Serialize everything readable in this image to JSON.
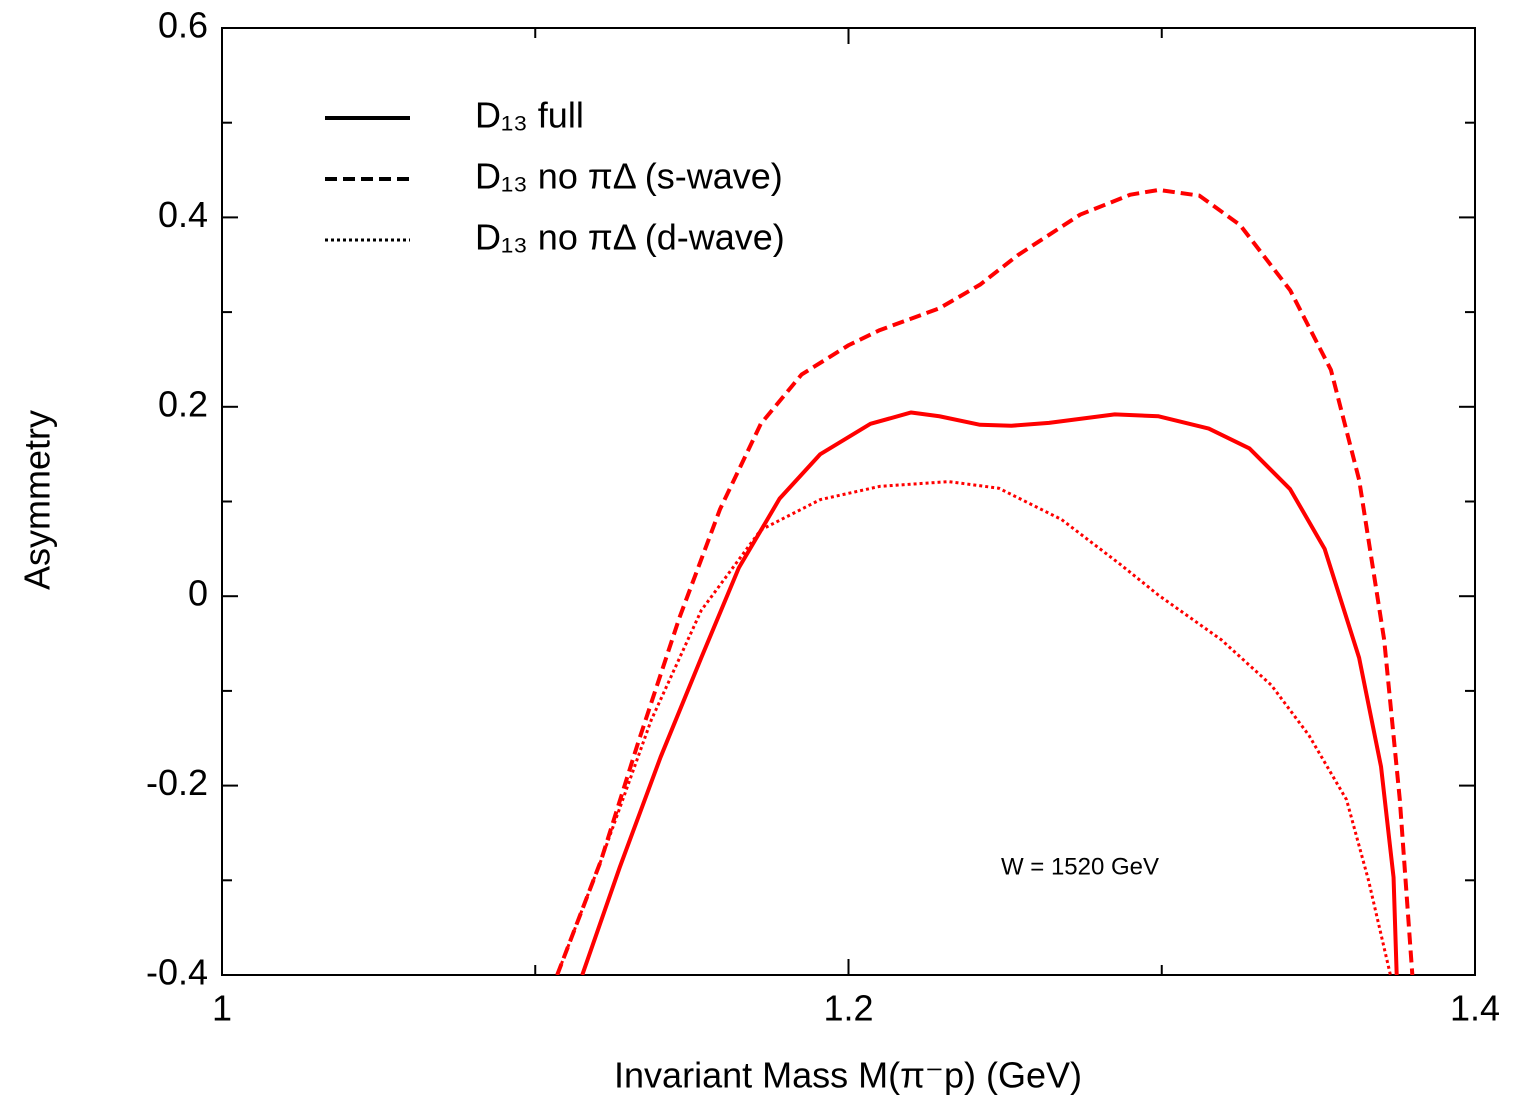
{
  "chart_data": {
    "type": "line",
    "xlabel": "Invariant Mass M(π⁻p) (GeV)",
    "ylabel": "Asymmetry",
    "annotation": "W = 1520 GeV",
    "annotation_color": "#ff0000",
    "xlim": [
      1,
      1.4
    ],
    "xticks": [
      1,
      1.2,
      1.4
    ],
    "xminor_ticks": [
      1.1,
      1.3
    ],
    "ylim": [
      -0.4,
      0.6
    ],
    "yticks": [
      -0.4,
      -0.2,
      0,
      0.2,
      0.4,
      0.6
    ],
    "yminor_ticks": [
      -0.3,
      -0.1,
      0.1,
      0.3,
      0.5
    ],
    "legend": "upper left",
    "series": [
      {
        "name": "D₁₃ full",
        "color": "#ff0000",
        "style": "solid",
        "x": [
          1.115,
          1.127,
          1.14,
          1.153,
          1.165,
          1.178,
          1.191,
          1.207,
          1.22,
          1.229,
          1.242,
          1.252,
          1.264,
          1.285,
          1.299,
          1.315,
          1.328,
          1.341,
          1.352,
          1.363,
          1.37,
          1.374,
          1.375
        ],
        "values": [
          -0.4,
          -0.286,
          -0.17,
          -0.065,
          0.03,
          0.103,
          0.15,
          0.182,
          0.194,
          0.19,
          0.181,
          0.18,
          0.183,
          0.192,
          0.19,
          0.177,
          0.156,
          0.113,
          0.05,
          -0.065,
          -0.18,
          -0.297,
          -0.4
        ]
      },
      {
        "name": "D₁₃ no πΔ (s-wave)",
        "color": "#ff0000",
        "style": "dashed",
        "x": [
          1.107,
          1.121,
          1.133,
          1.146,
          1.159,
          1.172,
          1.185,
          1.2,
          1.21,
          1.229,
          1.242,
          1.254,
          1.274,
          1.29,
          1.299,
          1.312,
          1.325,
          1.341,
          1.354,
          1.363,
          1.371,
          1.376,
          1.38
        ],
        "values": [
          -0.4,
          -0.279,
          -0.153,
          -0.023,
          0.092,
          0.182,
          0.234,
          0.265,
          0.281,
          0.304,
          0.329,
          0.36,
          0.403,
          0.424,
          0.429,
          0.423,
          0.392,
          0.323,
          0.239,
          0.123,
          -0.046,
          -0.215,
          -0.4
        ]
      },
      {
        "name": "D₁₃ no πΔ (d-wave)",
        "color": "#ff0000",
        "style": "dotted",
        "x": [
          1.107,
          1.121,
          1.137,
          1.153,
          1.172,
          1.191,
          1.21,
          1.232,
          1.248,
          1.268,
          1.287,
          1.299,
          1.319,
          1.335,
          1.347,
          1.359,
          1.366,
          1.373
        ],
        "values": [
          -0.4,
          -0.279,
          -0.131,
          -0.015,
          0.07,
          0.102,
          0.116,
          0.121,
          0.114,
          0.081,
          0.033,
          0.001,
          -0.046,
          -0.094,
          -0.147,
          -0.215,
          -0.3,
          -0.4
        ]
      }
    ]
  }
}
